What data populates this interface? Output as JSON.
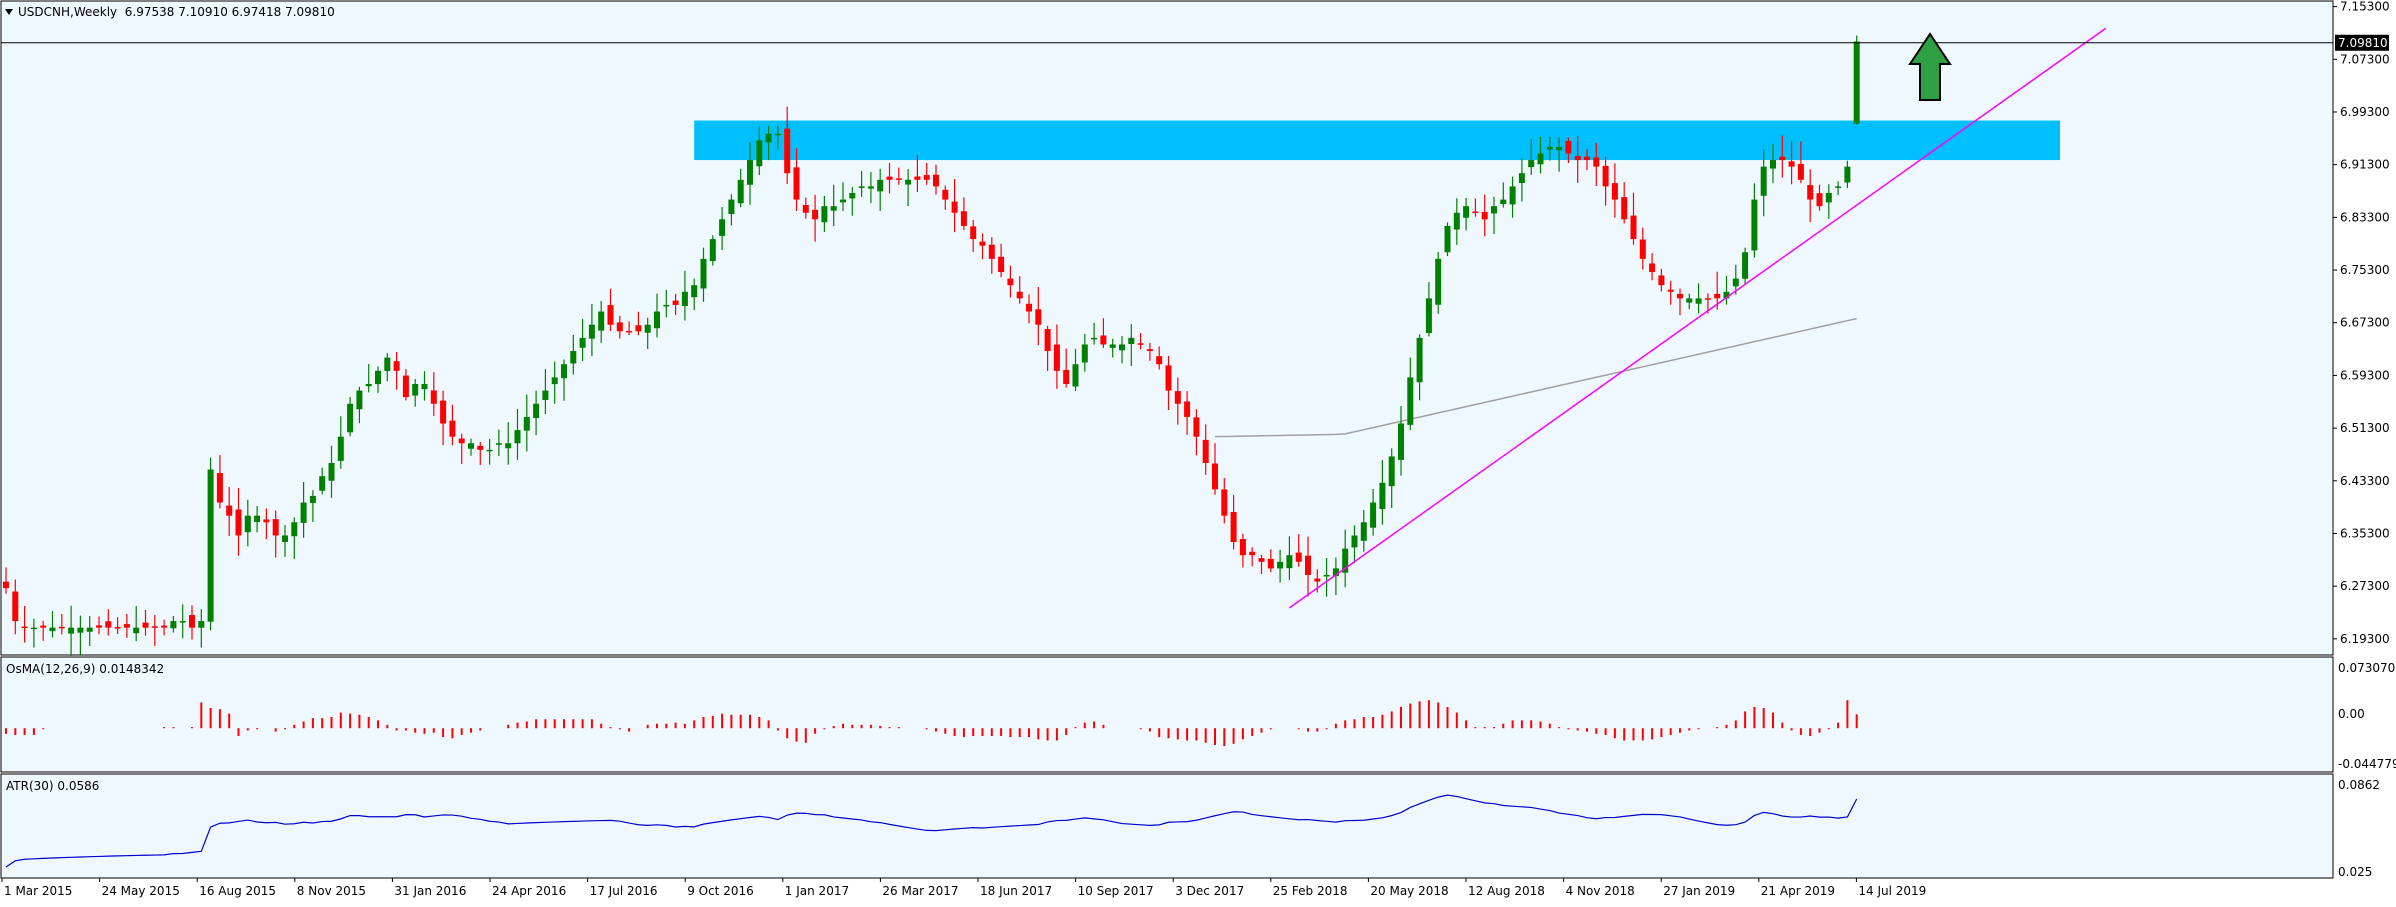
{
  "header": {
    "symbol_line": "USDCNH,Weekly  6.97538 7.10910 6.97418 7.09810"
  },
  "colors": {
    "background": "#f0f8ff",
    "bull": "#008000",
    "bear": "#ff0000",
    "zone": "#00bfff",
    "trendline": "#ff00ff",
    "ma": "#a0a0a0",
    "atr": "#0000cd",
    "osma": "#ff0000",
    "arrow": "#2ea043",
    "grid_text": "#000000"
  },
  "chart_data": [
    {
      "type": "candlestick",
      "panel": "main",
      "title": "USDCNH,Weekly",
      "ohlc_header": {
        "open": 6.97538,
        "high": 7.1091,
        "low": 6.97418,
        "close": 7.0981
      },
      "current_price_label": "7.09810",
      "ylim": [
        6.17,
        7.16
      ],
      "y_ticks": [
        "7.15300",
        "7.07300",
        "6.99300",
        "6.91300",
        "6.83300",
        "6.75300",
        "6.67300",
        "6.59300",
        "6.51300",
        "6.43300",
        "6.35300",
        "6.27300",
        "6.19300"
      ],
      "x_ticks": [
        "1 Mar 2015",
        "24 May 2015",
        "16 Aug 2015",
        "8 Nov 2015",
        "31 Jan 2016",
        "24 Apr 2016",
        "17 Jul 2016",
        "9 Oct 2016",
        "1 Jan 2017",
        "26 Mar 2017",
        "18 Jun 2017",
        "10 Sep 2017",
        "3 Dec 2017",
        "25 Feb 2018",
        "20 May 2018",
        "12 Aug 2018",
        "4 Nov 2018",
        "27 Jan 2019",
        "21 Apr 2019",
        "14 Jul 2019"
      ],
      "close_path": [
        6.27,
        6.22,
        6.21,
        6.21,
        6.21,
        6.21,
        6.21,
        6.21,
        6.21,
        6.21,
        6.21,
        6.21,
        6.21,
        6.21,
        6.21,
        6.21,
        6.21,
        6.21,
        6.22,
        6.22,
        6.21,
        6.22,
        6.45,
        6.4,
        6.38,
        6.35,
        6.38,
        6.38,
        6.37,
        6.35,
        6.35,
        6.37,
        6.4,
        6.41,
        6.44,
        6.46,
        6.5,
        6.55,
        6.57,
        6.58,
        6.6,
        6.62,
        6.6,
        6.56,
        6.58,
        6.58,
        6.55,
        6.52,
        6.5,
        6.49,
        6.49,
        6.48,
        6.48,
        6.49,
        6.49,
        6.51,
        6.53,
        6.55,
        6.57,
        6.59,
        6.61,
        6.63,
        6.65,
        6.67,
        6.69,
        6.67,
        6.66,
        6.66,
        6.66,
        6.67,
        6.69,
        6.7,
        6.7,
        6.72,
        6.73,
        6.77,
        6.8,
        6.83,
        6.86,
        6.89,
        6.92,
        6.95,
        6.96,
        6.96,
        6.9,
        6.86,
        6.84,
        6.83,
        6.85,
        6.85,
        6.86,
        6.87,
        6.88,
        6.88,
        6.89,
        6.89,
        6.89,
        6.89,
        6.89,
        6.89,
        6.88,
        6.86,
        6.84,
        6.82,
        6.8,
        6.79,
        6.77,
        6.75,
        6.73,
        6.71,
        6.69,
        6.67,
        6.63,
        6.6,
        6.58,
        6.61,
        6.64,
        6.65,
        6.64,
        6.64,
        6.64,
        6.65,
        6.64,
        6.63,
        6.61,
        6.57,
        6.55,
        6.53,
        6.5,
        6.46,
        6.42,
        6.38,
        6.34,
        6.32,
        6.32,
        6.31,
        6.3,
        6.31,
        6.32,
        6.31,
        6.29,
        6.28,
        6.29,
        6.3,
        6.33,
        6.35,
        6.37,
        6.4,
        6.43,
        6.47,
        6.52,
        6.59,
        6.65,
        6.71,
        6.77,
        6.82,
        6.84,
        6.85,
        6.84,
        6.83,
        6.85,
        6.86,
        6.88,
        6.9,
        6.92,
        6.93,
        6.94,
        6.94,
        6.93,
        6.92,
        6.92,
        6.91,
        6.88,
        6.86,
        6.83,
        6.8,
        6.77,
        6.75,
        6.73,
        6.72,
        6.71,
        6.71,
        6.71,
        6.71,
        6.71,
        6.72,
        6.74,
        6.78,
        6.86,
        6.91,
        6.92,
        6.92,
        6.91,
        6.89,
        6.86,
        6.85,
        6.87,
        6.88,
        6.91,
        7.1
      ],
      "resistance_zone": [
        6.92,
        6.98
      ],
      "trendline": {
        "from": [
          139,
          6.24
        ],
        "to": [
          229,
          7.12
        ]
      },
      "moving_average": {
        "start_index": 130,
        "start_value": 6.5,
        "end_value": 6.68
      }
    },
    {
      "type": "bar",
      "panel": "osma",
      "label": "OsMA(12,26,9) 0.0148342",
      "y_ticks": [
        "0.0730705",
        "0.00",
        "-0.0447794"
      ],
      "ylim": [
        -0.0448,
        0.0731
      ]
    },
    {
      "type": "line",
      "panel": "atr",
      "label": "ATR(30) 0.0586",
      "y_ticks": [
        "0.0862",
        "0.025"
      ],
      "ylim": [
        0.025,
        0.0862
      ]
    }
  ]
}
